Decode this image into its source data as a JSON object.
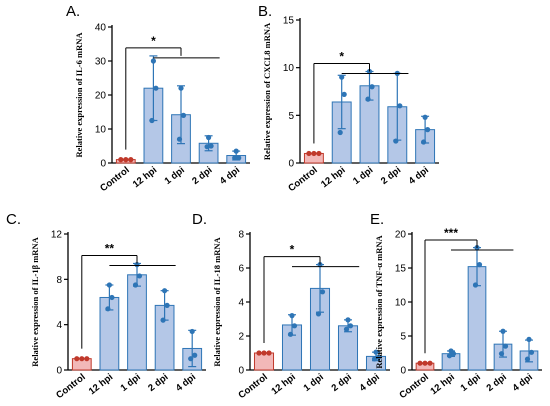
{
  "colors": {
    "control_fill": "#f2b8b8",
    "control_stroke": "#c0392b",
    "control_dot": "#c0392b",
    "bar_fill": "#b4c7e7",
    "bar_stroke": "#2e75b6",
    "dot": "#2e75b6",
    "error": "#2e75b6",
    "axis": "#000000"
  },
  "chart_data": [
    {
      "panel": "A.",
      "type": "bar",
      "ylabel": "Relative expression of IL-6 mRNA",
      "categories": [
        "Control",
        "12 hpi",
        "1 dpi",
        "2 dpi",
        "4 dpi"
      ],
      "values": [
        1,
        22,
        14.2,
        5.8,
        2.2
      ],
      "errors": [
        0.1,
        9.5,
        8.5,
        2.2,
        1.3
      ],
      "points": [
        [
          1,
          1,
          1
        ],
        [
          30,
          22,
          12.5
        ],
        [
          22,
          14,
          7
        ],
        [
          7.5,
          5,
          4.8
        ],
        [
          3.5,
          1.5,
          1.5
        ]
      ],
      "ylim": [
        0,
        40
      ],
      "yticks": [
        0,
        10,
        20,
        30,
        40
      ],
      "significance": [
        {
          "from": 0,
          "to": 2,
          "label": "*"
        }
      ]
    },
    {
      "panel": "B.",
      "type": "bar",
      "ylabel": "Relative expression of CXCL8 mRNA",
      "categories": [
        "Control",
        "12 hpi",
        "1 dpi",
        "2 dpi",
        "4 dpi"
      ],
      "values": [
        1,
        6.4,
        8.1,
        5.9,
        3.5
      ],
      "errors": [
        0.05,
        2.8,
        1.5,
        3.5,
        1.4
      ],
      "points": [
        [
          1,
          1,
          1
        ],
        [
          9,
          7.2,
          3.2
        ],
        [
          9.6,
          8,
          6.7
        ],
        [
          9.4,
          6,
          2.3
        ],
        [
          4.8,
          3.5,
          2.2
        ]
      ],
      "ylim": [
        0,
        15
      ],
      "yticks": [
        0,
        5,
        10,
        15
      ],
      "significance": [
        {
          "from": 0,
          "to": 2,
          "label": "*"
        }
      ]
    },
    {
      "panel": "C.",
      "type": "bar",
      "ylabel": "Relative expression of IL-1β mRNA",
      "categories": [
        "Control",
        "12 hpi",
        "1 dpi",
        "2 dpi",
        "4 dpi"
      ],
      "values": [
        1,
        6.4,
        8.4,
        5.7,
        1.9
      ],
      "errors": [
        0.05,
        1.1,
        1.0,
        1.3,
        1.6
      ],
      "points": [
        [
          1,
          1,
          1
        ],
        [
          7.5,
          6.4,
          5.4
        ],
        [
          9.3,
          8.3,
          7.5
        ],
        [
          7,
          5.7,
          4.4
        ],
        [
          3.4,
          1.3,
          1.0
        ]
      ],
      "ylim": [
        0,
        12
      ],
      "yticks": [
        0,
        4,
        8,
        12
      ],
      "significance": [
        {
          "from": 0,
          "to": 2,
          "label": "**"
        }
      ]
    },
    {
      "panel": "D.",
      "type": "bar",
      "ylabel": "Relative expression of IL-18 mRNA",
      "categories": [
        "Control",
        "12 hpi",
        "1 dpi",
        "2 dpi",
        "4 dpi"
      ],
      "values": [
        1,
        2.65,
        4.8,
        2.6,
        0.8
      ],
      "errors": [
        0.03,
        0.6,
        1.4,
        0.35,
        0.25
      ],
      "points": [
        [
          1,
          1,
          1
        ],
        [
          3.2,
          2.6,
          2.1
        ],
        [
          6.2,
          4.6,
          3.3
        ],
        [
          2.95,
          2.6,
          2.4
        ],
        [
          1.05,
          0.75,
          0.65
        ]
      ],
      "ylim": [
        0,
        8
      ],
      "yticks": [
        0,
        2,
        4,
        6,
        8
      ],
      "significance": [
        {
          "from": 0,
          "to": 2,
          "label": "*"
        }
      ]
    },
    {
      "panel": "E.",
      "type": "bar",
      "ylabel": "Relative expression of TNF-α mRNA",
      "categories": [
        "Control",
        "12 hpi",
        "1 dpi",
        "2 dpi",
        "4 dpi"
      ],
      "values": [
        1,
        2.4,
        15.2,
        3.8,
        2.8
      ],
      "errors": [
        0.05,
        0.4,
        2.8,
        1.9,
        1.6
      ],
      "points": [
        [
          1,
          1,
          1
        ],
        [
          2.8,
          2.4,
          2.1
        ],
        [
          18,
          15.5,
          12.5
        ],
        [
          5.7,
          3.5,
          2.4
        ],
        [
          4.5,
          2.6,
          1.6
        ]
      ],
      "ylim": [
        0,
        20
      ],
      "yticks": [
        0,
        5,
        10,
        15,
        20
      ],
      "significance": [
        {
          "from": 0,
          "to": 2,
          "label": "***"
        }
      ]
    }
  ]
}
